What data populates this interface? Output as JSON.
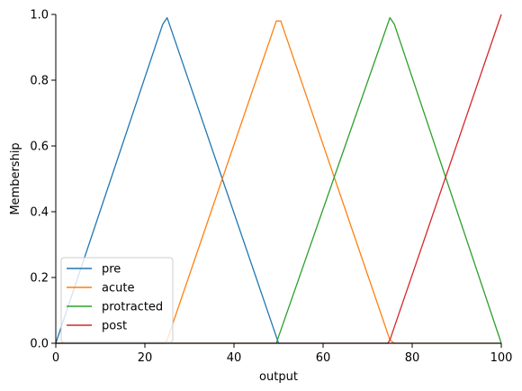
{
  "chart_data": {
    "type": "line",
    "title": "",
    "xlabel": "output",
    "ylabel": "Membership",
    "xlim": [
      0,
      100
    ],
    "ylim": [
      0,
      1
    ],
    "xticks": [
      0,
      20,
      40,
      60,
      80,
      100
    ],
    "yticks": [
      0.0,
      0.2,
      0.4,
      0.6,
      0.8,
      1.0
    ],
    "grid": false,
    "legend_placement": "lower-left",
    "series": [
      {
        "name": "pre",
        "color": "#1f77b4",
        "x": [
          0,
          24,
          25,
          49.5,
          50,
          100
        ],
        "y": [
          0,
          0.97,
          0.99,
          0.02,
          0,
          0
        ]
      },
      {
        "name": "acute",
        "color": "#ff7f0e",
        "x": [
          0,
          24.5,
          25,
          49.5,
          50.5,
          75,
          76,
          100
        ],
        "y": [
          0,
          0,
          0.01,
          0.98,
          0.98,
          0.01,
          0,
          0
        ]
      },
      {
        "name": "protracted",
        "color": "#2ca02c",
        "x": [
          0,
          49.5,
          50,
          75,
          76,
          100
        ],
        "y": [
          0,
          0,
          0.02,
          0.99,
          0.97,
          0
        ]
      },
      {
        "name": "post",
        "color": "#d62728",
        "x": [
          0,
          74.5,
          75,
          100
        ],
        "y": [
          0,
          0,
          0.01,
          1.0
        ]
      }
    ]
  }
}
